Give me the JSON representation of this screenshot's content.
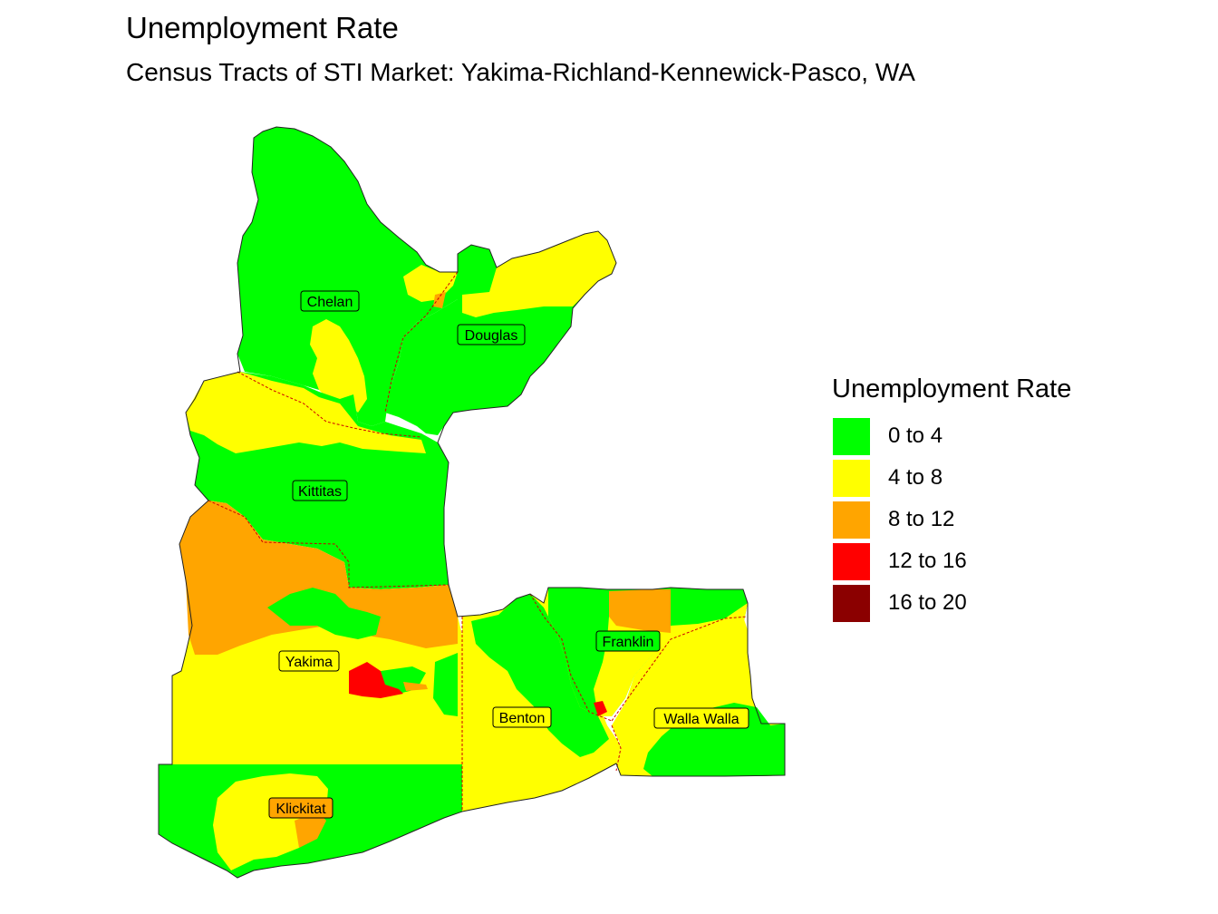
{
  "title": "Unemployment Rate",
  "subtitle": "Census Tracts of STI Market: Yakima-Richland-Kennewick-Pasco, WA",
  "legend": {
    "title": "Unemployment Rate",
    "items": [
      {
        "label": "0 to 4",
        "color": "#00ff00"
      },
      {
        "label": "4 to 8",
        "color": "#ffff00"
      },
      {
        "label": "8 to 12",
        "color": "#ffa500"
      },
      {
        "label": "12 to 16",
        "color": "#ff0000"
      },
      {
        "label": "16 to 20",
        "color": "#8b0000"
      }
    ]
  },
  "counties": [
    {
      "name": "Chelan",
      "rate_class": "0 to 4"
    },
    {
      "name": "Douglas",
      "rate_class": "0 to 4"
    },
    {
      "name": "Kittitas",
      "rate_class": "0 to 4"
    },
    {
      "name": "Yakima",
      "rate_class": "4 to 8"
    },
    {
      "name": "Benton",
      "rate_class": "4 to 8"
    },
    {
      "name": "Franklin",
      "rate_class": "0 to 4"
    },
    {
      "name": "Walla Walla",
      "rate_class": "4 to 8"
    },
    {
      "name": "Klickitat",
      "rate_class": "0 to 4"
    }
  ],
  "colors": {
    "green": "#00ff00",
    "yellow": "#ffff00",
    "orange": "#ffa500",
    "red": "#ff0000",
    "darkred": "#8b0000",
    "county_border": "#cc0000"
  }
}
